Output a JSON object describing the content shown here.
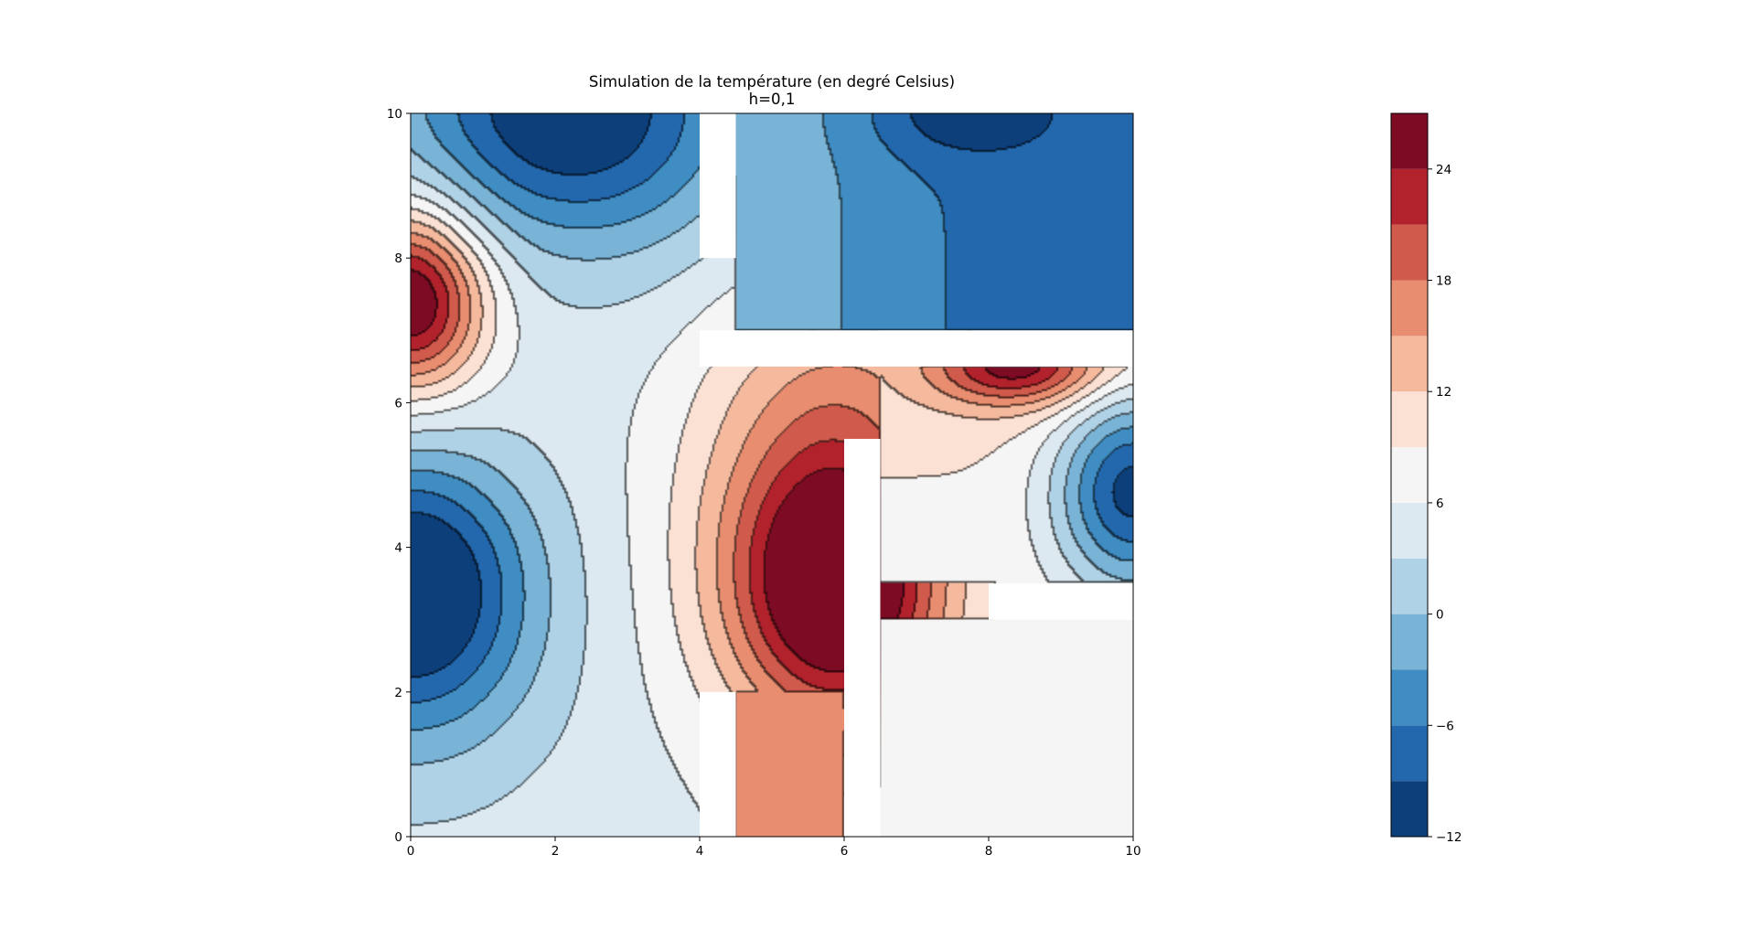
{
  "chart_data": {
    "type": "heatmap",
    "subtype": "filled-contour",
    "title": "Simulation de la température (en degré Celsius)",
    "subtitle": "h=0,1",
    "xlabel": "",
    "ylabel": "",
    "xlim": [
      0,
      10
    ],
    "ylim": [
      0,
      10
    ],
    "x_ticks": [
      "0",
      "2",
      "4",
      "6",
      "8",
      "10"
    ],
    "y_ticks": [
      "0",
      "2",
      "4",
      "6",
      "8",
      "10"
    ],
    "grid": false,
    "colormap": "RdBu_r",
    "colorbar": {
      "levels": [
        -12,
        -9,
        -6,
        -3,
        0,
        3,
        6,
        9,
        12,
        15,
        18,
        21,
        24,
        27
      ],
      "tick_labels": [
        "−12",
        "−6",
        "0",
        "6",
        "12",
        "18",
        "24"
      ],
      "colors": [
        "#0d3f7a",
        "#2368ad",
        "#3f8dc2",
        "#79b3d6",
        "#b0d2e6",
        "#dce9f1",
        "#f5f5f5",
        "#fbe1d4",
        "#f5b99e",
        "#e88d6f",
        "#d05a4b",
        "#b1222c",
        "#7c0b23"
      ]
    },
    "walls": [
      {
        "x": [
          4,
          4.5
        ],
        "y": [
          8,
          10
        ]
      },
      {
        "x": [
          4,
          10
        ],
        "y": [
          6.5,
          7
        ]
      },
      {
        "x": [
          6,
          6.5
        ],
        "y": [
          0,
          5.5
        ]
      },
      {
        "x": [
          8,
          10
        ],
        "y": [
          3,
          3.5
        ]
      },
      {
        "x": [
          4,
          4.5
        ],
        "y": [
          0,
          2
        ]
      }
    ],
    "sources": [
      {
        "x": 0,
        "y": 7.4,
        "peak": 27,
        "note": "hot spot left wall"
      },
      {
        "x": 0,
        "y": 3.4,
        "peak": -9,
        "note": "cold spot left wall"
      },
      {
        "x": 2.1,
        "y": 10,
        "peak": -9,
        "note": "cold spot top wall"
      },
      {
        "x": 7.6,
        "y": 10,
        "peak": -12,
        "note": "cold spot top wall"
      },
      {
        "x": 8.4,
        "y": 6.5,
        "peak": 27,
        "note": "hot spot under horizontal wall"
      },
      {
        "x": 10,
        "y": 4.8,
        "peak": -9,
        "note": "cold spot right wall"
      },
      {
        "x": 6,
        "y": 3.5,
        "peak": 27,
        "note": "hot spot on vertical wall"
      }
    ],
    "regions": [
      {
        "name": "upper-right room",
        "approx_temperature": -6
      },
      {
        "name": "lower-right room",
        "approx_temperature": 7
      },
      {
        "name": "corridor between x=4.5 and x=6",
        "approx_temperature": 16
      }
    ]
  }
}
